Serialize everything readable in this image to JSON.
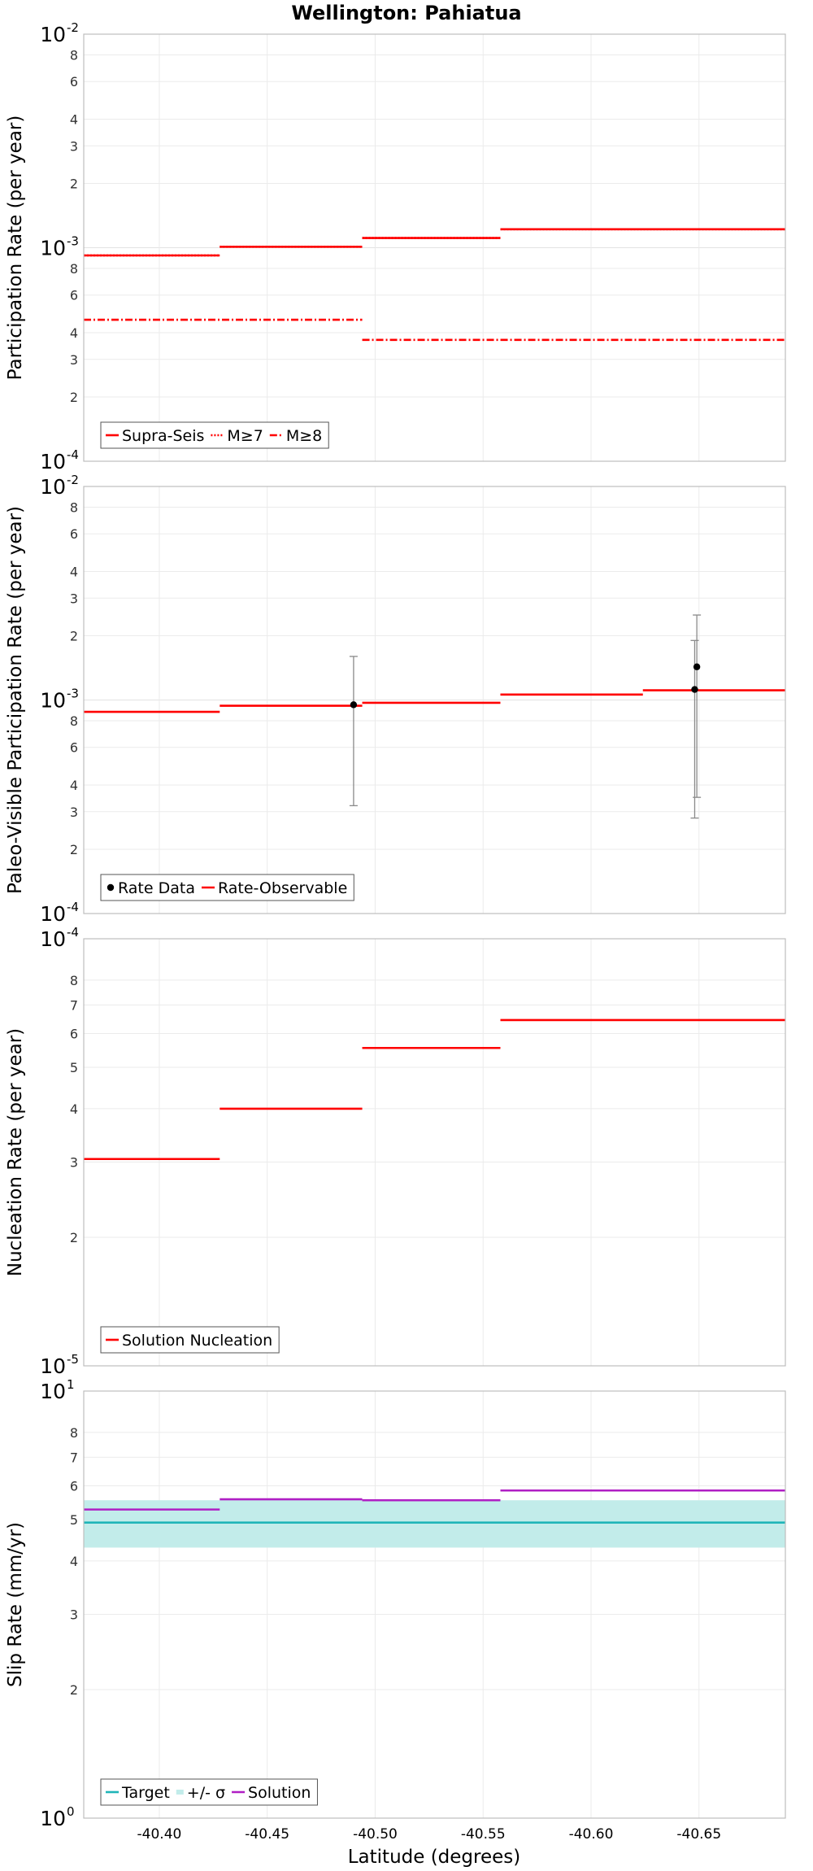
{
  "chart_data": {
    "title": "Wellington: Pahiatua",
    "xlabel": "Latitude (degrees)",
    "x_range": [
      -40.365,
      -40.69
    ],
    "x_ticks": [
      "-40.40",
      "-40.45",
      "-40.50",
      "-40.55",
      "-40.60",
      "-40.65"
    ],
    "x_tick_values": [
      -40.4,
      -40.45,
      -40.5,
      -40.55,
      -40.6,
      -40.65
    ],
    "panels": [
      {
        "id": "participation",
        "type": "line",
        "y_scale": "log",
        "ylabel": "Participation Rate (per year)",
        "ylim": [
          0.0001,
          0.01
        ],
        "major_ticks": [
          {
            "base": "10",
            "exp": "-4",
            "value": 0.0001
          },
          {
            "base": "10",
            "exp": "-3",
            "value": 0.001
          },
          {
            "base": "10",
            "exp": "-2",
            "value": 0.01
          }
        ],
        "minor_ticks": [
          {
            "label": "2",
            "value": 0.0002
          },
          {
            "label": "3",
            "value": 0.0003
          },
          {
            "label": "4",
            "value": 0.0004
          },
          {
            "label": "6",
            "value": 0.0006
          },
          {
            "label": "8",
            "value": 0.0008
          },
          {
            "label": "2",
            "value": 0.002
          },
          {
            "label": "3",
            "value": 0.003
          },
          {
            "label": "4",
            "value": 0.004
          },
          {
            "label": "6",
            "value": 0.006
          },
          {
            "label": "8",
            "value": 0.008
          }
        ],
        "series": [
          {
            "name": "Supra-Seis",
            "color": "#ff0000",
            "dash": "solid",
            "segments": [
              [
                -40.365,
                -40.428,
                0.00092
              ],
              [
                -40.428,
                -40.494,
                0.00101
              ],
              [
                -40.494,
                -40.558,
                0.00111
              ],
              [
                -40.558,
                -40.69,
                0.00122
              ]
            ]
          },
          {
            "name": "M≥7",
            "color": "#ff0000",
            "dash": "dotted",
            "segments": [
              [
                -40.365,
                -40.428,
                0.00092
              ],
              [
                -40.428,
                -40.494,
                0.00101
              ],
              [
                -40.494,
                -40.558,
                0.00111
              ],
              [
                -40.558,
                -40.69,
                0.00122
              ]
            ]
          },
          {
            "name": "M≥8",
            "color": "#ff0000",
            "dash": "dashdot",
            "segments": [
              [
                -40.365,
                -40.494,
                0.00046
              ],
              [
                -40.494,
                -40.69,
                0.00037
              ]
            ]
          }
        ],
        "legend": [
          {
            "label": "Supra-Seis",
            "style": "solid",
            "color": "#ff0000"
          },
          {
            "label": "M≥7",
            "style": "dotted",
            "color": "#ff0000"
          },
          {
            "label": "M≥8",
            "style": "dashdot",
            "color": "#ff0000"
          }
        ]
      },
      {
        "id": "paleo",
        "type": "line",
        "y_scale": "log",
        "ylabel": "Paleo-Visible Participation Rate (per year)",
        "ylim": [
          0.0001,
          0.01
        ],
        "major_ticks": [
          {
            "base": "10",
            "exp": "-4",
            "value": 0.0001
          },
          {
            "base": "10",
            "exp": "-3",
            "value": 0.001
          },
          {
            "base": "10",
            "exp": "-2",
            "value": 0.01
          }
        ],
        "minor_ticks": [
          {
            "label": "2",
            "value": 0.0002
          },
          {
            "label": "3",
            "value": 0.0003
          },
          {
            "label": "4",
            "value": 0.0004
          },
          {
            "label": "6",
            "value": 0.0006
          },
          {
            "label": "8",
            "value": 0.0008
          },
          {
            "label": "2",
            "value": 0.002
          },
          {
            "label": "3",
            "value": 0.003
          },
          {
            "label": "4",
            "value": 0.004
          },
          {
            "label": "6",
            "value": 0.006
          },
          {
            "label": "8",
            "value": 0.008
          }
        ],
        "series": [
          {
            "name": "Rate-Observable",
            "color": "#ff0000",
            "dash": "solid",
            "segments": [
              [
                -40.365,
                -40.428,
                0.00088
              ],
              [
                -40.428,
                -40.494,
                0.00094
              ],
              [
                -40.494,
                -40.558,
                0.00097
              ],
              [
                -40.558,
                -40.624,
                0.00106
              ],
              [
                -40.624,
                -40.69,
                0.00111
              ]
            ]
          }
        ],
        "points": [
          {
            "x": -40.49,
            "y": 0.00095,
            "lo": 0.00032,
            "hi": 0.0016
          },
          {
            "x": -40.648,
            "y": 0.00112,
            "lo": 0.00028,
            "hi": 0.0019
          },
          {
            "x": -40.649,
            "y": 0.00143,
            "lo": 0.00035,
            "hi": 0.0025
          }
        ],
        "legend": [
          {
            "label": "Rate Data",
            "style": "dot",
            "color": "#000000"
          },
          {
            "label": "Rate-Observable",
            "style": "solid",
            "color": "#ff0000"
          }
        ]
      },
      {
        "id": "nucleation",
        "type": "line",
        "y_scale": "log",
        "ylabel": "Nucleation Rate (per year)",
        "ylim": [
          1e-05,
          0.0001
        ],
        "major_ticks": [
          {
            "base": "10",
            "exp": "-5",
            "value": 1e-05
          },
          {
            "base": "10",
            "exp": "-4",
            "value": 0.0001
          }
        ],
        "minor_ticks": [
          {
            "label": "2",
            "value": 2e-05
          },
          {
            "label": "3",
            "value": 3e-05
          },
          {
            "label": "4",
            "value": 4e-05
          },
          {
            "label": "5",
            "value": 5e-05
          },
          {
            "label": "6",
            "value": 6e-05
          },
          {
            "label": "7",
            "value": 7e-05
          },
          {
            "label": "8",
            "value": 8e-05
          }
        ],
        "series": [
          {
            "name": "Solution Nucleation",
            "color": "#ff0000",
            "dash": "solid",
            "segments": [
              [
                -40.365,
                -40.428,
                3.05e-05
              ],
              [
                -40.428,
                -40.494,
                4e-05
              ],
              [
                -40.494,
                -40.558,
                5.55e-05
              ],
              [
                -40.558,
                -40.69,
                6.45e-05
              ]
            ]
          }
        ],
        "legend": [
          {
            "label": "Solution Nucleation",
            "style": "solid",
            "color": "#ff0000"
          }
        ]
      },
      {
        "id": "slip",
        "type": "line",
        "y_scale": "log",
        "ylabel": "Slip Rate (mm/yr)",
        "ylim": [
          1,
          10
        ],
        "major_ticks": [
          {
            "base": "10",
            "exp": "0",
            "value": 1
          },
          {
            "base": "10",
            "exp": "1",
            "value": 10
          }
        ],
        "minor_ticks": [
          {
            "label": "2",
            "value": 2
          },
          {
            "label": "3",
            "value": 3
          },
          {
            "label": "4",
            "value": 4
          },
          {
            "label": "5",
            "value": 5
          },
          {
            "label": "6",
            "value": 6
          },
          {
            "label": "7",
            "value": 7
          },
          {
            "label": "8",
            "value": 8
          }
        ],
        "band": {
          "name": "+/- σ",
          "color": "#c2ecea",
          "lo": 4.3,
          "hi": 5.55
        },
        "series": [
          {
            "name": "Target",
            "color": "#1fb5b8",
            "dash": "solid",
            "segments": [
              [
                -40.365,
                -40.69,
                4.92
              ]
            ]
          },
          {
            "name": "Solution",
            "color": "#b01fc4",
            "dash": "solid",
            "segments": [
              [
                -40.365,
                -40.428,
                5.28
              ],
              [
                -40.428,
                -40.494,
                5.58
              ],
              [
                -40.494,
                -40.558,
                5.55
              ],
              [
                -40.558,
                -40.69,
                5.85
              ]
            ]
          }
        ],
        "legend": [
          {
            "label": "Target",
            "style": "solid",
            "color": "#1fb5b8"
          },
          {
            "label": "+/- σ",
            "style": "band",
            "color": "#c2ecea"
          },
          {
            "label": "Solution",
            "style": "solid",
            "color": "#b01fc4"
          }
        ]
      }
    ]
  }
}
